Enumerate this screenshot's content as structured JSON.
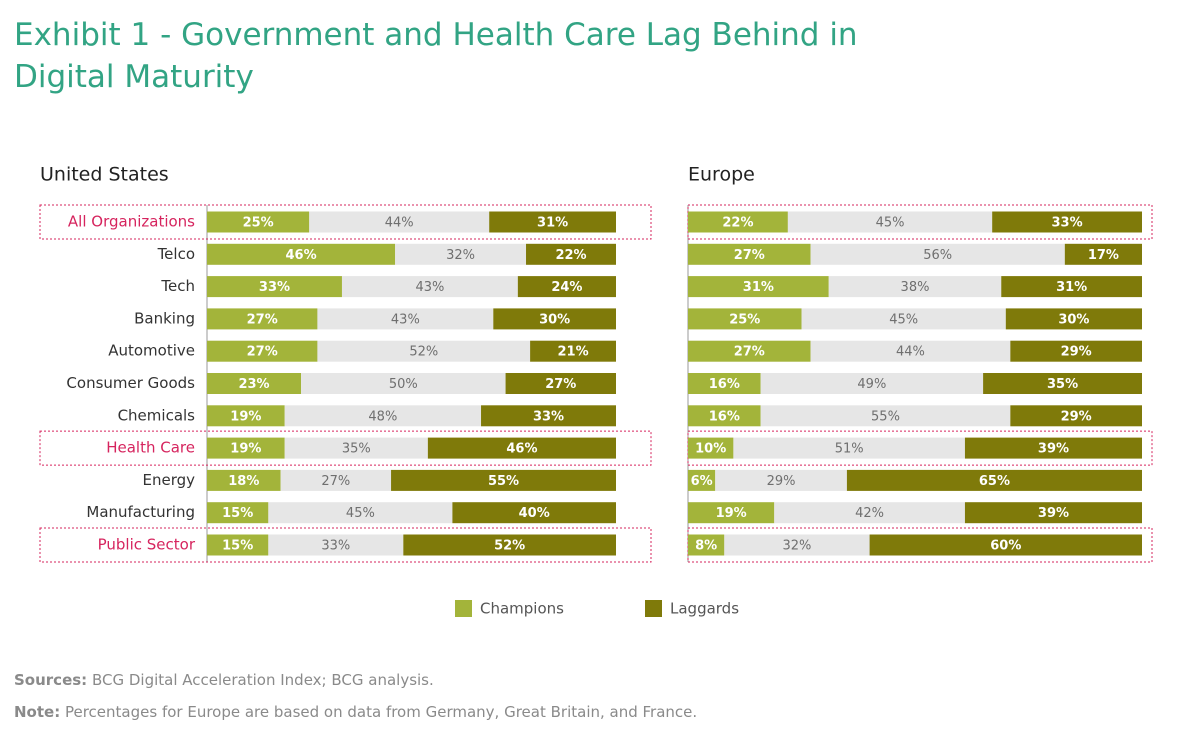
{
  "title": "Exhibit 1 - Government and Health Care Lag Behind in Digital Maturity",
  "chart_data": [
    {
      "type": "bar",
      "orientation": "horizontal",
      "stacked": true,
      "title": "United States",
      "categories": [
        "All Organizations",
        "Telco",
        "Tech",
        "Banking",
        "Automotive",
        "Consumer Goods",
        "Chemicals",
        "Health Care",
        "Energy",
        "Manufacturing",
        "Public Sector"
      ],
      "xlim": [
        0,
        100
      ],
      "highlight": [
        0,
        7,
        10
      ],
      "highlight_color": "#d6245e",
      "series": [
        {
          "name": "Champions",
          "color": "#a3b43a",
          "values": [
            25,
            46,
            33,
            27,
            27,
            23,
            19,
            19,
            18,
            15,
            15
          ],
          "value_labels": [
            "25%",
            "46%",
            "33%",
            "27%",
            "27%",
            "23%",
            "19%",
            "19%",
            "18%",
            "15%",
            "15%"
          ]
        },
        {
          "color": "#e6e6e6",
          "values": [
            44,
            32,
            43,
            43,
            52,
            50,
            48,
            35,
            27,
            45,
            33
          ],
          "value_labels": [
            "44%",
            "32%",
            "43%",
            "43%",
            "52%",
            "50%",
            "48%",
            "35%",
            "27%",
            "45%",
            "33%"
          ]
        },
        {
          "name": "Laggards",
          "color": "#7f7a0a",
          "values": [
            31,
            22,
            24,
            30,
            21,
            27,
            33,
            46,
            55,
            40,
            52
          ],
          "value_labels": [
            "31%",
            "22%",
            "24%",
            "30%",
            "21%",
            "27%",
            "33%",
            "46%",
            "55%",
            "40%",
            "52%"
          ]
        }
      ]
    },
    {
      "type": "bar",
      "orientation": "horizontal",
      "stacked": true,
      "title": "Europe",
      "xlim": [
        0,
        100
      ],
      "highlight": [
        0,
        7,
        10
      ],
      "highlight_color": "#d6245e",
      "series": [
        {
          "name": "Champions",
          "color": "#a3b43a",
          "values": [
            22,
            27,
            31,
            25,
            27,
            16,
            16,
            10,
            6,
            19,
            8
          ],
          "value_labels": [
            "22%",
            "27%",
            "31%",
            "25%",
            "27%",
            "16%",
            "16%",
            "10%",
            "6%",
            "19%",
            "8%"
          ]
        },
        {
          "color": "#e6e6e6",
          "values": [
            45,
            56,
            38,
            45,
            44,
            49,
            55,
            51,
            29,
            42,
            32
          ],
          "value_labels": [
            "45%",
            "56%",
            "38%",
            "45%",
            "44%",
            "49%",
            "55%",
            "51%",
            "29%",
            "42%",
            "32%"
          ]
        },
        {
          "name": "Laggards",
          "color": "#7f7a0a",
          "values": [
            33,
            17,
            31,
            30,
            29,
            35,
            29,
            39,
            65,
            39,
            60
          ],
          "value_labels": [
            "33%",
            "17%",
            "31%",
            "30%",
            "29%",
            "35%",
            "29%",
            "39%",
            "65%",
            "39%",
            "60%"
          ]
        }
      ]
    }
  ],
  "sources": {
    "label": "Sources:",
    "text": "BCG Digital Acceleration Index; BCG analysis."
  },
  "note": {
    "label": "Note:",
    "text": "Percentages for Europe are based on data from Germany, Great Britain, and France."
  }
}
